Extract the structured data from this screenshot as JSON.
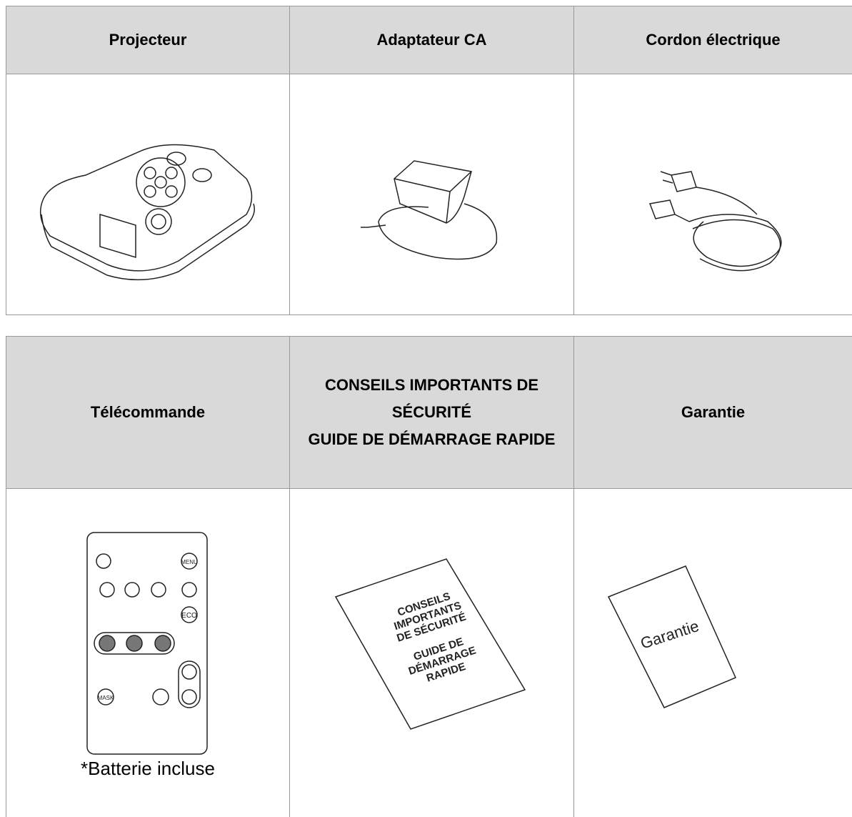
{
  "tables": [
    {
      "header": [
        "Projecteur",
        "Adaptateur CA",
        "Cordon électrique"
      ]
    },
    {
      "header": [
        "Télécommande",
        [
          "CONSEILS IMPORTANTS DE SÉCURITÉ",
          "GUIDE DE DÉMARRAGE RAPIDE"
        ],
        "Garantie"
      ],
      "note": "*Batterie incluse"
    }
  ],
  "illustrations": {
    "remote_buttons": [
      "MENU",
      "ECO",
      "MASK"
    ],
    "booklet": [
      "CONSEILS",
      "IMPORTANTS",
      "DE SÉCURITÉ",
      "GUIDE DE",
      "DÉMARRAGE",
      "RAPIDE"
    ],
    "warranty": "Garantie"
  }
}
